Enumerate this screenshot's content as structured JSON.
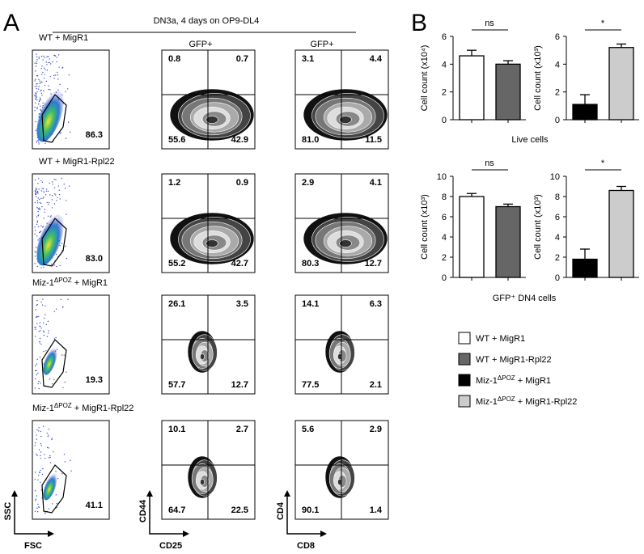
{
  "panel_a": {
    "letter": "A",
    "header": "DN3a, 4 days on OP9-DL4",
    "column_labels": [
      "GFP+",
      "GFP+"
    ],
    "rows": [
      {
        "label": [
          "WT + MigR1"
        ],
        "gate": "86.3",
        "cd44_cd25": [
          "0.8",
          "0.7",
          "55.6",
          "42.9"
        ],
        "cd4_cd8": [
          "3.1",
          "4.4",
          "81.0",
          "11.5"
        ]
      },
      {
        "label": [
          "WT + MigR1-Rpl22"
        ],
        "gate": "83.0",
        "cd44_cd25": [
          "1.2",
          "0.9",
          "55.2",
          "42.7"
        ],
        "cd4_cd8": [
          "2.9",
          "4.1",
          "80.3",
          "12.7"
        ]
      },
      {
        "label": [
          "Miz-1",
          "ΔPOZ",
          " + MigR1"
        ],
        "gate": "19.3",
        "cd44_cd25": [
          "26.1",
          "3.5",
          "57.7",
          "12.7"
        ],
        "cd4_cd8": [
          "14.1",
          "6.3",
          "77.5",
          "2.1"
        ]
      },
      {
        "label": [
          "Miz-1",
          "ΔPOZ",
          " + MigR1-Rpl22"
        ],
        "gate": "41.1",
        "cd44_cd25": [
          "10.1",
          "2.7",
          "64.7",
          "22.5"
        ],
        "cd4_cd8": [
          "5.6",
          "2.9",
          "90.1",
          "1.4"
        ]
      }
    ],
    "axes": [
      [
        "SSC",
        "FSC"
      ],
      [
        "CD44",
        "CD25"
      ],
      [
        "CD4",
        "CD8"
      ]
    ]
  },
  "panel_b": {
    "letter": "B",
    "charts": [
      {
        "ylabel": "Cell count  (x10⁴)",
        "ylim": [
          0,
          6
        ],
        "yticks": [
          0,
          2,
          4,
          6
        ],
        "values": [
          4.6,
          4.0
        ],
        "errors": [
          0.4,
          0.25
        ],
        "colors": [
          "#ffffff",
          "#666666"
        ],
        "significance": "ns"
      },
      {
        "ylabel": "Cell count  (x10³)",
        "ylim": [
          0,
          6
        ],
        "yticks": [
          0,
          2,
          4,
          6
        ],
        "values": [
          1.1,
          5.2
        ],
        "errors": [
          0.7,
          0.25
        ],
        "colors": [
          "#000000",
          "#cccccc"
        ],
        "significance": "*"
      },
      {
        "ylabel": "Cell count  (x10³)",
        "ylim": [
          0,
          10
        ],
        "yticks": [
          0,
          2,
          4,
          6,
          8,
          10
        ],
        "values": [
          8.0,
          7.0
        ],
        "errors": [
          0.3,
          0.25
        ],
        "colors": [
          "#ffffff",
          "#666666"
        ],
        "significance": "ns"
      },
      {
        "ylabel": "Cell count  (x10³)",
        "ylim": [
          0,
          10
        ],
        "yticks": [
          0,
          2,
          4,
          6,
          8,
          10
        ],
        "values": [
          1.8,
          8.6
        ],
        "errors": [
          1.0,
          0.4
        ],
        "colors": [
          "#000000",
          "#cccccc"
        ],
        "significance": "*"
      }
    ],
    "group_labels": [
      "Live cells",
      "GFP⁺ DN4 cells"
    ],
    "legend": [
      {
        "label": [
          "WT + MigR1"
        ],
        "color": "#ffffff"
      },
      {
        "label": [
          "WT + MigR1-Rpl22"
        ],
        "color": "#666666"
      },
      {
        "label": [
          "Miz-1",
          "ΔPOZ",
          " + MigR1"
        ],
        "color": "#000000"
      },
      {
        "label": [
          "Miz-1",
          "ΔPOZ",
          " + MigR1-Rpl22"
        ],
        "color": "#cccccc"
      }
    ]
  }
}
